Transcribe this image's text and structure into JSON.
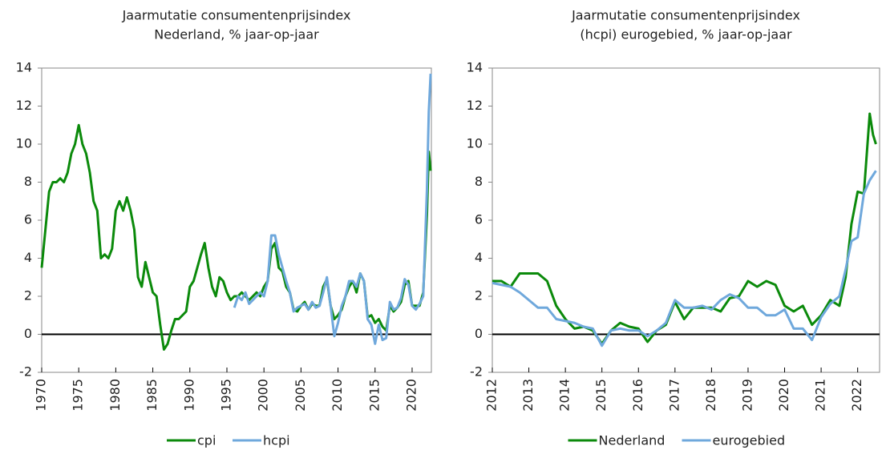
{
  "chart_data": [
    {
      "type": "line",
      "title": [
        "Jaarmutatie consumentenprijsindex",
        "Nederland, % jaar-op-jaar"
      ],
      "xlim": [
        1970,
        2022.6
      ],
      "xticks": [
        1970,
        1975,
        1980,
        1985,
        1990,
        1995,
        2000,
        2005,
        2010,
        2015,
        2020
      ],
      "ylim": [
        -2,
        14
      ],
      "yticks": [
        -2,
        0,
        2,
        4,
        6,
        8,
        10,
        12,
        14
      ],
      "series": [
        {
          "name": "cpi",
          "color": "#0b8a0b",
          "x": [
            1970,
            1970.5,
            1971,
            1971.5,
            1972,
            1972.5,
            1973,
            1973.5,
            1974,
            1974.5,
            1975,
            1975.5,
            1976,
            1976.5,
            1977,
            1977.5,
            1978,
            1978.5,
            1979,
            1979.5,
            1980,
            1980.5,
            1981,
            1981.5,
            1982,
            1982.5,
            1983,
            1983.5,
            1984,
            1984.5,
            1985,
            1985.5,
            1986,
            1986.5,
            1987,
            1987.5,
            1988,
            1988.5,
            1989,
            1989.5,
            1990,
            1990.5,
            1991,
            1991.5,
            1992,
            1992.5,
            1993,
            1993.5,
            1994,
            1994.5,
            1995,
            1995.5,
            1996,
            1996.5,
            1997,
            1997.5,
            1998,
            1998.5,
            1999,
            1999.5,
            2000,
            2000.5,
            2001,
            2001.5,
            2002,
            2002.5,
            2003,
            2003.5,
            2004,
            2004.5,
            2005,
            2005.5,
            2006,
            2006.5,
            2007,
            2007.5,
            2008,
            2008.5,
            2009,
            2009.5,
            2010,
            2010.5,
            2011,
            2011.5,
            2012,
            2012.5,
            2013,
            2013.5,
            2014,
            2014.5,
            2015,
            2015.5,
            2016,
            2016.5,
            2017,
            2017.5,
            2018,
            2018.5,
            2019,
            2019.5,
            2020,
            2020.5,
            2021,
            2021.5,
            2022,
            2022.25,
            2022.5
          ],
          "values": [
            3.5,
            5.5,
            7.5,
            8.0,
            8.0,
            8.2,
            8.0,
            8.5,
            9.5,
            10.0,
            11.0,
            10.0,
            9.5,
            8.5,
            7.0,
            6.5,
            4.0,
            4.2,
            4.0,
            4.5,
            6.5,
            7.0,
            6.5,
            7.2,
            6.5,
            5.5,
            3.0,
            2.5,
            3.8,
            3.0,
            2.2,
            2.0,
            0.5,
            -0.8,
            -0.5,
            0.2,
            0.8,
            0.8,
            1.0,
            1.2,
            2.5,
            2.8,
            3.5,
            4.2,
            4.8,
            3.5,
            2.5,
            2.0,
            3.0,
            2.8,
            2.2,
            1.8,
            2.0,
            2.0,
            2.2,
            2.0,
            1.8,
            2.0,
            2.2,
            2.0,
            2.5,
            2.8,
            4.5,
            4.8,
            3.5,
            3.3,
            2.5,
            2.2,
            1.3,
            1.2,
            1.5,
            1.7,
            1.3,
            1.6,
            1.5,
            1.5,
            2.5,
            2.9,
            1.5,
            0.8,
            1.0,
            1.3,
            2.0,
            2.5,
            2.8,
            2.2,
            3.2,
            2.8,
            0.9,
            1.0,
            0.6,
            0.8,
            0.4,
            0.2,
            1.5,
            1.2,
            1.4,
            1.7,
            2.6,
            2.8,
            1.5,
            1.5,
            1.5,
            2.2,
            6.3,
            9.6,
            8.6
          ]
        },
        {
          "name": "hcpi",
          "color": "#6fa8dc",
          "x": [
            1996,
            1996.5,
            1997,
            1997.5,
            1998,
            1998.5,
            1999,
            1999.5,
            2000,
            2000.5,
            2001,
            2001.5,
            2002,
            2002.5,
            2003,
            2003.5,
            2004,
            2004.5,
            2005,
            2005.5,
            2006,
            2006.5,
            2007,
            2007.5,
            2008,
            2008.5,
            2009,
            2009.5,
            2010,
            2010.5,
            2011,
            2011.5,
            2012,
            2012.5,
            2013,
            2013.5,
            2014,
            2014.5,
            2015,
            2015.5,
            2016,
            2016.5,
            2017,
            2017.5,
            2018,
            2018.5,
            2019,
            2019.5,
            2020,
            2020.5,
            2021,
            2021.5,
            2022,
            2022.25,
            2022.5
          ],
          "values": [
            1.4,
            2.0,
            1.8,
            2.2,
            1.6,
            1.8,
            2.0,
            2.2,
            2.0,
            2.8,
            5.2,
            5.2,
            4.2,
            3.5,
            2.8,
            2.2,
            1.2,
            1.4,
            1.5,
            1.6,
            1.3,
            1.7,
            1.4,
            1.5,
            2.2,
            3.0,
            1.5,
            -0.1,
            0.6,
            1.5,
            2.0,
            2.8,
            2.8,
            2.5,
            3.2,
            2.8,
            0.8,
            0.5,
            -0.5,
            0.5,
            -0.3,
            -0.2,
            1.7,
            1.3,
            1.4,
            1.9,
            2.9,
            2.6,
            1.5,
            1.3,
            1.6,
            2.0,
            7.6,
            11.7,
            13.7
          ]
        }
      ]
    },
    {
      "type": "line",
      "title": [
        "Jaarmutatie consumentenprijsindex",
        "(hcpi) eurogebied, % jaar-op-jaar"
      ],
      "xlim": [
        2012,
        2022.6
      ],
      "xticks": [
        2012,
        2013,
        2014,
        2015,
        2016,
        2017,
        2018,
        2019,
        2020,
        2021,
        2022
      ],
      "ylim": [
        -2,
        14
      ],
      "yticks": [
        -2,
        0,
        2,
        4,
        6,
        8,
        10,
        12,
        14
      ],
      "series": [
        {
          "name": "Nederland",
          "color": "#0b8a0b",
          "x": [
            2012,
            2012.25,
            2012.5,
            2012.75,
            2013,
            2013.25,
            2013.5,
            2013.75,
            2014,
            2014.25,
            2014.5,
            2014.75,
            2015,
            2015.25,
            2015.5,
            2015.75,
            2016,
            2016.25,
            2016.5,
            2016.75,
            2017,
            2017.25,
            2017.5,
            2017.75,
            2018,
            2018.25,
            2018.5,
            2018.75,
            2019,
            2019.25,
            2019.5,
            2019.75,
            2020,
            2020.25,
            2020.5,
            2020.75,
            2021,
            2021.25,
            2021.5,
            2021.67,
            2021.83,
            2022,
            2022.17,
            2022.33,
            2022.42,
            2022.5
          ],
          "values": [
            2.8,
            2.8,
            2.5,
            3.2,
            3.2,
            3.2,
            2.8,
            1.5,
            0.8,
            0.3,
            0.4,
            0.2,
            -0.5,
            0.2,
            0.6,
            0.4,
            0.3,
            -0.4,
            0.2,
            0.5,
            1.7,
            0.8,
            1.4,
            1.4,
            1.4,
            1.2,
            1.9,
            2.0,
            2.8,
            2.5,
            2.8,
            2.6,
            1.5,
            1.2,
            1.5,
            0.5,
            1.0,
            1.8,
            1.5,
            3.0,
            5.8,
            7.5,
            7.4,
            11.6,
            10.5,
            10.0
          ]
        },
        {
          "name": "eurogebied",
          "color": "#6fa8dc",
          "x": [
            2012,
            2012.25,
            2012.5,
            2012.75,
            2013,
            2013.25,
            2013.5,
            2013.75,
            2014,
            2014.25,
            2014.5,
            2014.75,
            2015,
            2015.25,
            2015.5,
            2015.75,
            2016,
            2016.25,
            2016.5,
            2016.75,
            2017,
            2017.25,
            2017.5,
            2017.75,
            2018,
            2018.25,
            2018.5,
            2018.75,
            2019,
            2019.25,
            2019.5,
            2019.75,
            2020,
            2020.25,
            2020.5,
            2020.75,
            2021,
            2021.25,
            2021.5,
            2021.67,
            2021.83,
            2022,
            2022.17,
            2022.33,
            2022.5
          ],
          "values": [
            2.7,
            2.6,
            2.5,
            2.2,
            1.8,
            1.4,
            1.4,
            0.8,
            0.7,
            0.6,
            0.4,
            0.3,
            -0.6,
            0.2,
            0.3,
            0.2,
            0.2,
            -0.1,
            0.2,
            0.6,
            1.8,
            1.4,
            1.4,
            1.5,
            1.3,
            1.8,
            2.1,
            1.9,
            1.4,
            1.4,
            1.0,
            1.0,
            1.3,
            0.3,
            0.3,
            -0.3,
            0.9,
            1.6,
            2.0,
            3.4,
            4.9,
            5.1,
            7.4,
            8.1,
            8.6
          ]
        }
      ]
    }
  ]
}
